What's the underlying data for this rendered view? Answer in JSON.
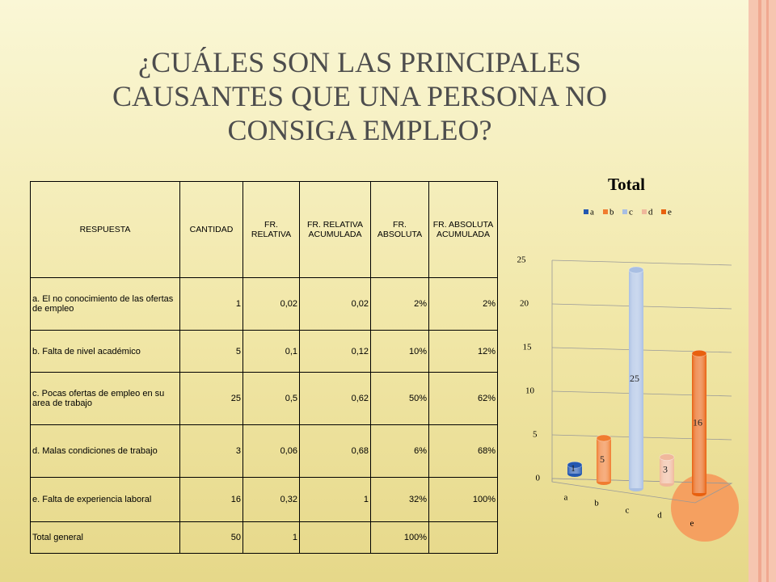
{
  "title": [
    "¿CUÁLES SON LAS PRINCIPALES",
    "CAUSANTES QUE UNA PERSONA NO",
    "CONSIGA EMPLEO?"
  ],
  "table": {
    "header": [
      "RESPUESTA",
      "CANTIDAD",
      "FR. RELATIVA",
      "FR. RELATIVA ACUMULADA",
      "FR. ABSOLUTA",
      "FR. ABSOLUTA ACUMULADA"
    ],
    "rows": [
      [
        "a. El no conocimiento de las ofertas de empleo",
        "1",
        "0,02",
        "0,02",
        "2%",
        "2%"
      ],
      [
        "b. Falta de nivel académico",
        "5",
        "0,1",
        "0,12",
        "10%",
        "12%"
      ],
      [
        "c. Pocas ofertas de empleo en su area de trabajo",
        "25",
        "0,5",
        "0,62",
        "50%",
        "62%"
      ],
      [
        "d. Malas condiciones de trabajo",
        "3",
        "0,06",
        "0,68",
        "6%",
        "68%"
      ],
      [
        "e. Falta de experiencia laboral",
        "16",
        "0,32",
        "1",
        "32%",
        "100%"
      ],
      [
        "Total general",
        "50",
        "1",
        null,
        "100%",
        null
      ]
    ]
  },
  "chart_data": {
    "type": "bar",
    "title": "Total",
    "categories": [
      "a",
      "b",
      "c",
      "d",
      "e"
    ],
    "values": [
      1,
      5,
      25,
      3,
      16
    ],
    "colors": [
      "#2458b0",
      "#f07c30",
      "#a9bfe3",
      "#f0b89c",
      "#e8600e"
    ],
    "ylim": [
      0,
      25
    ],
    "yticks": [
      0,
      5,
      10,
      15,
      20,
      25
    ],
    "grid": true
  }
}
